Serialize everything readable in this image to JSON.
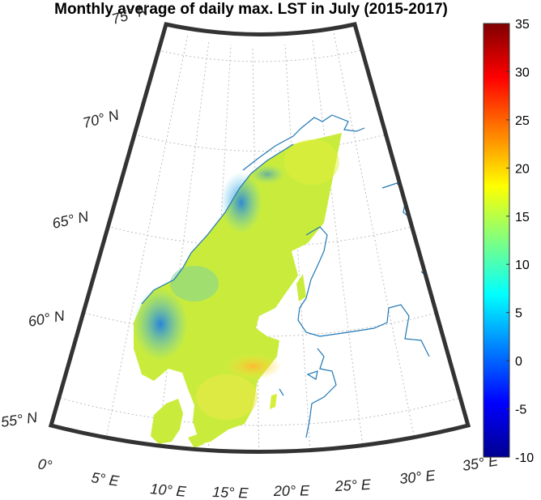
{
  "title": "Monthly average of daily max. LST in July (2015-2017)",
  "colors": {
    "frame": "#333333",
    "graticule": "#bdbdbd",
    "coastline": "#1f77b4"
  },
  "map": {
    "projection": "conic",
    "lat_labels": [
      {
        "text": "55° N",
        "lat": 55
      },
      {
        "text": "60° N",
        "lat": 60
      },
      {
        "text": "65° N",
        "lat": 65
      },
      {
        "text": "70° N",
        "lat": 70
      },
      {
        "text": "75° N",
        "lat": 75
      }
    ],
    "lon_labels": [
      {
        "text": "0°",
        "lon": 0
      },
      {
        "text": "5° E",
        "lon": 5
      },
      {
        "text": "10° E",
        "lon": 10
      },
      {
        "text": "15° E",
        "lon": 15
      },
      {
        "text": "20° E",
        "lon": 20
      },
      {
        "text": "25° E",
        "lon": 25
      },
      {
        "text": "30° E",
        "lon": 30
      },
      {
        "text": "35° E",
        "lon": 35
      }
    ]
  },
  "colorbar": {
    "min": -10,
    "max": 35,
    "colormap": "jet",
    "ticks": [
      {
        "label": "35",
        "value": 35
      },
      {
        "label": "30",
        "value": 30
      },
      {
        "label": "25",
        "value": 25
      },
      {
        "label": "20",
        "value": 20
      },
      {
        "label": "15",
        "value": 15
      },
      {
        "label": "10",
        "value": 10
      },
      {
        "label": "5",
        "value": 5
      },
      {
        "label": "0",
        "value": 0
      },
      {
        "label": "-5",
        "value": -5
      },
      {
        "label": "-10",
        "value": -10
      }
    ]
  }
}
